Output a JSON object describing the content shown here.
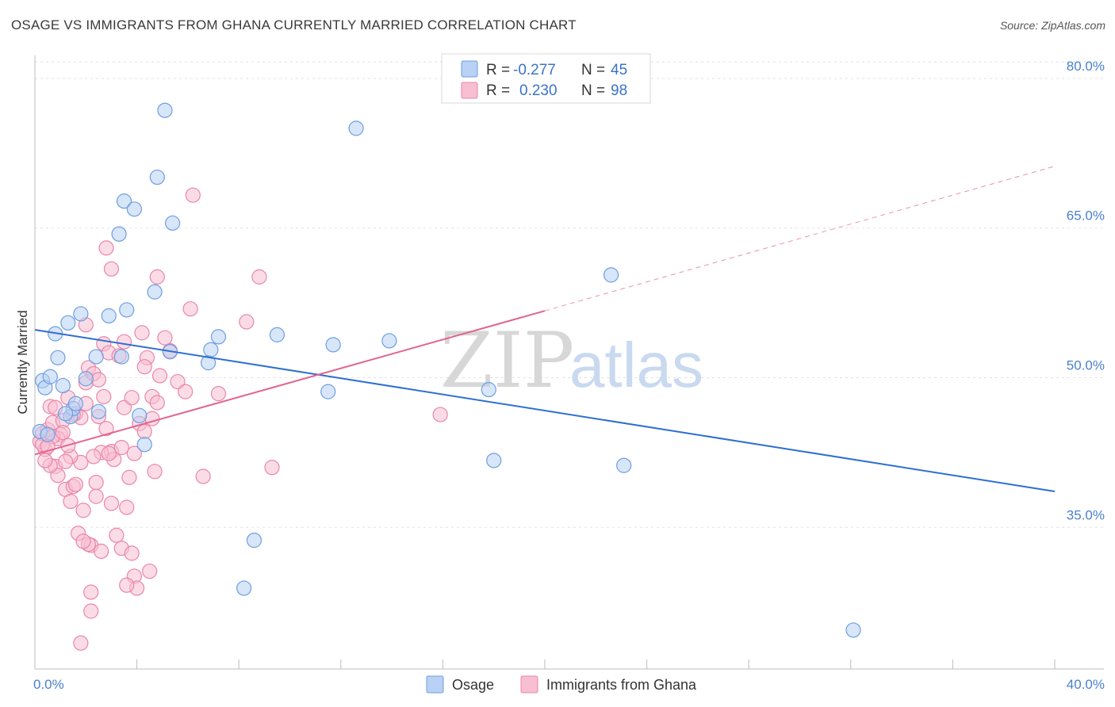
{
  "title": "OSAGE VS IMMIGRANTS FROM GHANA CURRENTLY MARRIED CORRELATION CHART",
  "source": "Source: ZipAtlas.com",
  "watermark": {
    "part1": "ZIP",
    "part2": "atlas"
  },
  "colors": {
    "osage_fill": "#b8d1f4",
    "osage_stroke": "#6e9ee0",
    "osage_line": "#2e6fd0",
    "ghana_fill": "#f7bfd1",
    "ghana_stroke": "#ea86a8",
    "ghana_line": "#e0648f",
    "tick_text": "#4a7fd0",
    "grid": "#e2e2e2"
  },
  "legend": {
    "rows": [
      {
        "r_label": "R =",
        "r_value": "-0.277",
        "n_label": "N =",
        "n_value": "45"
      },
      {
        "r_label": "R =",
        "r_value": "0.230",
        "n_label": "N =",
        "n_value": "98"
      }
    ]
  },
  "chart_data": {
    "type": "scatter",
    "title": "OSAGE VS IMMIGRANTS FROM GHANA CURRENTLY MARRIED CORRELATION CHART",
    "xlabel": "",
    "ylabel": "Currently Married",
    "xlim": [
      0,
      40
    ],
    "ylim": [
      20.8,
      82.3
    ],
    "x_tick_labels": [
      "0.0%",
      "40.0%"
    ],
    "y_ticks": [
      35,
      50,
      65,
      80
    ],
    "y_tick_labels": [
      "35.0%",
      "50.0%",
      "65.0%",
      "80.0%"
    ],
    "grid": true,
    "legend_position": "top-center",
    "series": [
      {
        "name": "Osage",
        "r": -0.277,
        "n": 45,
        "trend": {
          "x0": 0,
          "y0": 54.8,
          "x1": 40,
          "y1": 38.6,
          "dashed_to": null
        },
        "points": [
          [
            0.3,
            49.7
          ],
          [
            0.4,
            49
          ],
          [
            0.6,
            50.1
          ],
          [
            0.8,
            54.4
          ],
          [
            0.9,
            52
          ],
          [
            1.1,
            49.2
          ],
          [
            1.3,
            55.5
          ],
          [
            1.4,
            46.1
          ],
          [
            1.5,
            46.9
          ],
          [
            1.6,
            47.4
          ],
          [
            1.8,
            56.4
          ],
          [
            2,
            49.9
          ],
          [
            2.4,
            52.1
          ],
          [
            2.5,
            46.6
          ],
          [
            2.9,
            56.2
          ],
          [
            3.3,
            64.4
          ],
          [
            3.4,
            52.1
          ],
          [
            3.5,
            67.7
          ],
          [
            3.6,
            56.8
          ],
          [
            3.9,
            66.9
          ],
          [
            4.1,
            46.2
          ],
          [
            4.3,
            43.3
          ],
          [
            4.7,
            58.6
          ],
          [
            4.8,
            70.1
          ],
          [
            5.1,
            76.8
          ],
          [
            5.3,
            52.6
          ],
          [
            5.4,
            65.5
          ],
          [
            6.8,
            51.5
          ],
          [
            6.9,
            52.8
          ],
          [
            7.2,
            54.1
          ],
          [
            8.6,
            33.7
          ],
          [
            8.2,
            28.9
          ],
          [
            9.5,
            54.3
          ],
          [
            11.5,
            48.6
          ],
          [
            11.7,
            53.3
          ],
          [
            12.6,
            75
          ],
          [
            13.9,
            53.7
          ],
          [
            17.8,
            48.8
          ],
          [
            18,
            41.7
          ],
          [
            22.6,
            60.3
          ],
          [
            23.1,
            41.2
          ],
          [
            32.1,
            24.7
          ],
          [
            0.2,
            44.6
          ],
          [
            0.5,
            44.3
          ],
          [
            1.2,
            46.4
          ]
        ]
      },
      {
        "name": "Immigrants from Ghana",
        "r": 0.23,
        "n": 98,
        "trend": {
          "x0": 0,
          "y0": 42.3,
          "x1": 20,
          "y1": 56.7,
          "dashed_to": {
            "x": 40,
            "y": 71.2
          }
        },
        "points": [
          [
            0.2,
            43.6
          ],
          [
            0.3,
            44.4
          ],
          [
            0.4,
            42.8
          ],
          [
            0.5,
            44.8
          ],
          [
            0.6,
            47.1
          ],
          [
            0.7,
            45.5
          ],
          [
            0.8,
            41.1
          ],
          [
            0.9,
            40.2
          ],
          [
            1,
            44.3
          ],
          [
            1.1,
            45.7
          ],
          [
            1.2,
            38.8
          ],
          [
            1.3,
            48
          ],
          [
            1.4,
            37.6
          ],
          [
            1.5,
            39.1
          ],
          [
            1.6,
            46.4
          ],
          [
            1.7,
            34.4
          ],
          [
            1.8,
            41.5
          ],
          [
            1.9,
            36.7
          ],
          [
            2,
            49.5
          ],
          [
            2.1,
            51
          ],
          [
            2.2,
            33.2
          ],
          [
            2.3,
            50.4
          ],
          [
            2.4,
            38.1
          ],
          [
            2.5,
            46.1
          ],
          [
            2.6,
            32.6
          ],
          [
            2.7,
            53.4
          ],
          [
            2.8,
            44.9
          ],
          [
            2.9,
            52.5
          ],
          [
            3,
            42.6
          ],
          [
            3.1,
            41.8
          ],
          [
            3.2,
            34.2
          ],
          [
            3.3,
            52.2
          ],
          [
            3.4,
            32.9
          ],
          [
            3.5,
            47
          ],
          [
            3.6,
            37
          ],
          [
            3.7,
            40
          ],
          [
            3.8,
            48
          ],
          [
            3.9,
            30.1
          ],
          [
            4,
            28.9
          ],
          [
            4.1,
            45.4
          ],
          [
            4.2,
            54.5
          ],
          [
            4.3,
            44.6
          ],
          [
            4.4,
            52
          ],
          [
            4.5,
            30.6
          ],
          [
            4.6,
            48.1
          ],
          [
            4.7,
            40.6
          ],
          [
            4.8,
            47.5
          ],
          [
            4.9,
            50.2
          ],
          [
            5.1,
            54
          ],
          [
            5.3,
            52.7
          ],
          [
            5.6,
            49.6
          ],
          [
            5.9,
            48.6
          ],
          [
            6.1,
            56.9
          ],
          [
            6.2,
            68.3
          ],
          [
            6.6,
            40.1
          ],
          [
            7.2,
            48.4
          ],
          [
            8.3,
            55.6
          ],
          [
            8.8,
            60.1
          ],
          [
            9.3,
            41
          ],
          [
            2.8,
            63
          ],
          [
            3,
            60.9
          ],
          [
            4.8,
            60.1
          ],
          [
            2,
            55.3
          ],
          [
            3.5,
            53.6
          ],
          [
            4.3,
            51.1
          ],
          [
            2.6,
            42.5
          ],
          [
            1.8,
            46
          ],
          [
            1.6,
            39.3
          ],
          [
            2.4,
            39.5
          ],
          [
            2.1,
            33.3
          ],
          [
            3.6,
            29.2
          ],
          [
            2.2,
            28.5
          ],
          [
            2.2,
            26.6
          ],
          [
            1.8,
            23.4
          ],
          [
            0.9,
            43.9
          ],
          [
            1.4,
            42.1
          ],
          [
            0.6,
            41.2
          ],
          [
            0.7,
            44.1
          ],
          [
            1.3,
            43.2
          ],
          [
            2,
            47.4
          ],
          [
            2.9,
            42.4
          ],
          [
            3.4,
            43
          ],
          [
            3.8,
            32.4
          ],
          [
            1.1,
            44.5
          ],
          [
            1.5,
            46.3
          ],
          [
            0.4,
            41.7
          ],
          [
            0.3,
            43.3
          ],
          [
            2.7,
            48.1
          ],
          [
            3,
            37.4
          ],
          [
            3.9,
            42.4
          ],
          [
            4.6,
            45.9
          ],
          [
            1.9,
            33.6
          ],
          [
            2.3,
            42.1
          ],
          [
            15.9,
            46.3
          ],
          [
            0.8,
            47
          ],
          [
            1.2,
            41.6
          ],
          [
            0.5,
            43.1
          ],
          [
            2.5,
            49.8
          ]
        ]
      }
    ]
  }
}
